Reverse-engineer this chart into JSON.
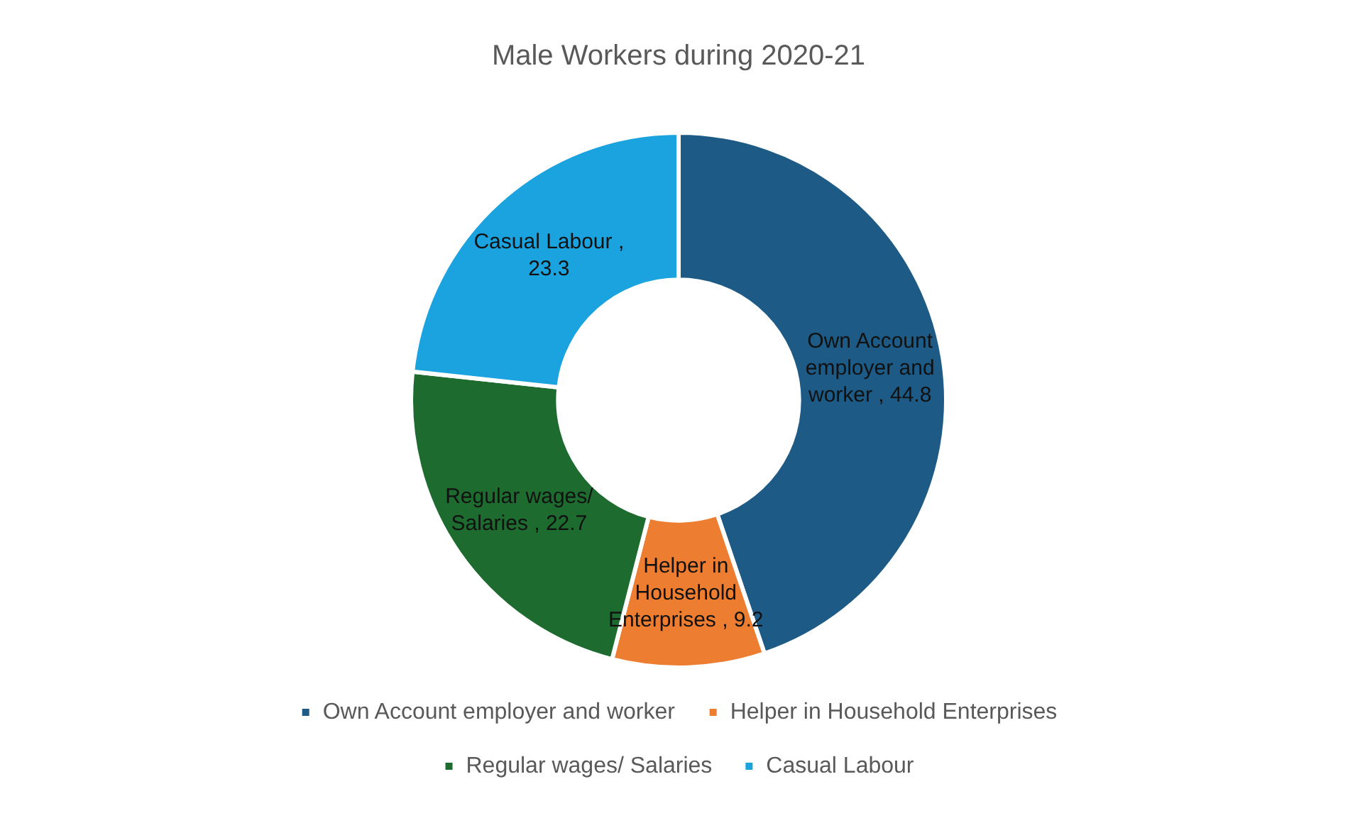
{
  "chart_data": {
    "type": "donut",
    "title": "Male Workers during 2020-21",
    "categories": [
      "Own Account employer and worker",
      "Helper in Household Enterprises",
      "Regular wages/ Salaries",
      "Casual Labour"
    ],
    "values": [
      44.8,
      9.2,
      22.7,
      23.3
    ],
    "colors": [
      "#1d5b86",
      "#ed7d31",
      "#1e6b30",
      "#1aa3df"
    ],
    "value_labels": [
      "Own Account employer and worker , 44.8",
      "Helper in Household Enterprises , 9.2",
      "Regular wages/ Salaries , 22.7",
      "Casual Labour , 23.3"
    ],
    "legend": "bottom"
  }
}
